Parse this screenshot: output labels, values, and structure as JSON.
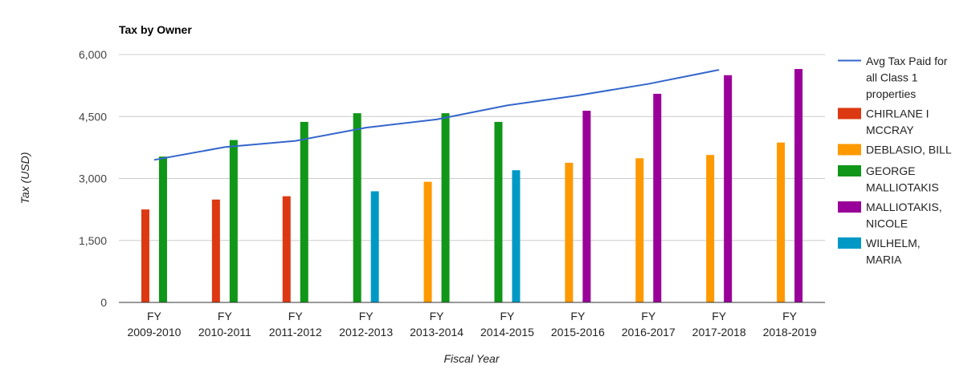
{
  "chart_data": {
    "type": "bar",
    "title": "Tax by Owner",
    "xlabel": "Fiscal Year",
    "ylabel": "Tax (USD)",
    "ylim": [
      0,
      6000
    ],
    "y_ticks": [
      "0",
      "1,500",
      "3,000",
      "4,500",
      "6,000"
    ],
    "y_tick_values": [
      0,
      1500,
      3000,
      4500,
      6000
    ],
    "grid": true,
    "legend_position": "right",
    "categories": [
      "FY 2009-2010",
      "FY 2010-2011",
      "FY 2011-2012",
      "FY 2012-2013",
      "FY 2013-2014",
      "FY 2014-2015",
      "FY 2015-2016",
      "FY 2016-2017",
      "FY 2017-2018",
      "FY 2018-2019"
    ],
    "category_lines": [
      [
        "FY",
        "2009-2010"
      ],
      [
        "FY",
        "2010-2011"
      ],
      [
        "FY",
        "2011-2012"
      ],
      [
        "FY",
        "2012-2013"
      ],
      [
        "FY",
        "2013-2014"
      ],
      [
        "FY",
        "2014-2015"
      ],
      [
        "FY",
        "2015-2016"
      ],
      [
        "FY",
        "2016-2017"
      ],
      [
        "FY",
        "2017-2018"
      ],
      [
        "FY",
        "2018-2019"
      ]
    ],
    "line_series": {
      "name": "Avg Tax Paid for all Class 1 properties",
      "legend_lines": [
        "Avg Tax Paid for",
        "all Class 1",
        "properties"
      ],
      "color": "#3366cc",
      "values": [
        3450,
        3760,
        3910,
        4230,
        4430,
        4770,
        5010,
        5290,
        5630,
        null
      ]
    },
    "series": [
      {
        "name": "CHIRLANE I MCCRAY",
        "legend_lines": [
          "CHIRLANE I",
          "MCCRAY"
        ],
        "color": "#dc3912",
        "values": [
          2250,
          2490,
          2570,
          null,
          null,
          null,
          null,
          null,
          null,
          null
        ]
      },
      {
        "name": "DEBLASIO, BILL",
        "legend_lines": [
          "DEBLASIO, BILL"
        ],
        "color": "#ff9900",
        "values": [
          null,
          null,
          null,
          null,
          2920,
          null,
          3380,
          3490,
          3570,
          3870
        ]
      },
      {
        "name": "GEORGE MALLIOTAKIS",
        "legend_lines": [
          "GEORGE",
          "MALLIOTAKIS"
        ],
        "color": "#109618",
        "values": [
          3530,
          3930,
          4370,
          4580,
          4580,
          4370,
          null,
          null,
          null,
          null
        ]
      },
      {
        "name": "MALLIOTAKIS, NICOLE",
        "legend_lines": [
          "MALLIOTAKIS,",
          "NICOLE"
        ],
        "color": "#990099",
        "values": [
          null,
          null,
          null,
          null,
          null,
          null,
          4640,
          5050,
          5500,
          5650
        ]
      },
      {
        "name": "WILHELM, MARIA",
        "legend_lines": [
          "WILHELM,",
          "MARIA"
        ],
        "color": "#0099c6",
        "values": [
          null,
          null,
          null,
          2690,
          null,
          3200,
          null,
          null,
          null,
          null
        ]
      }
    ]
  }
}
